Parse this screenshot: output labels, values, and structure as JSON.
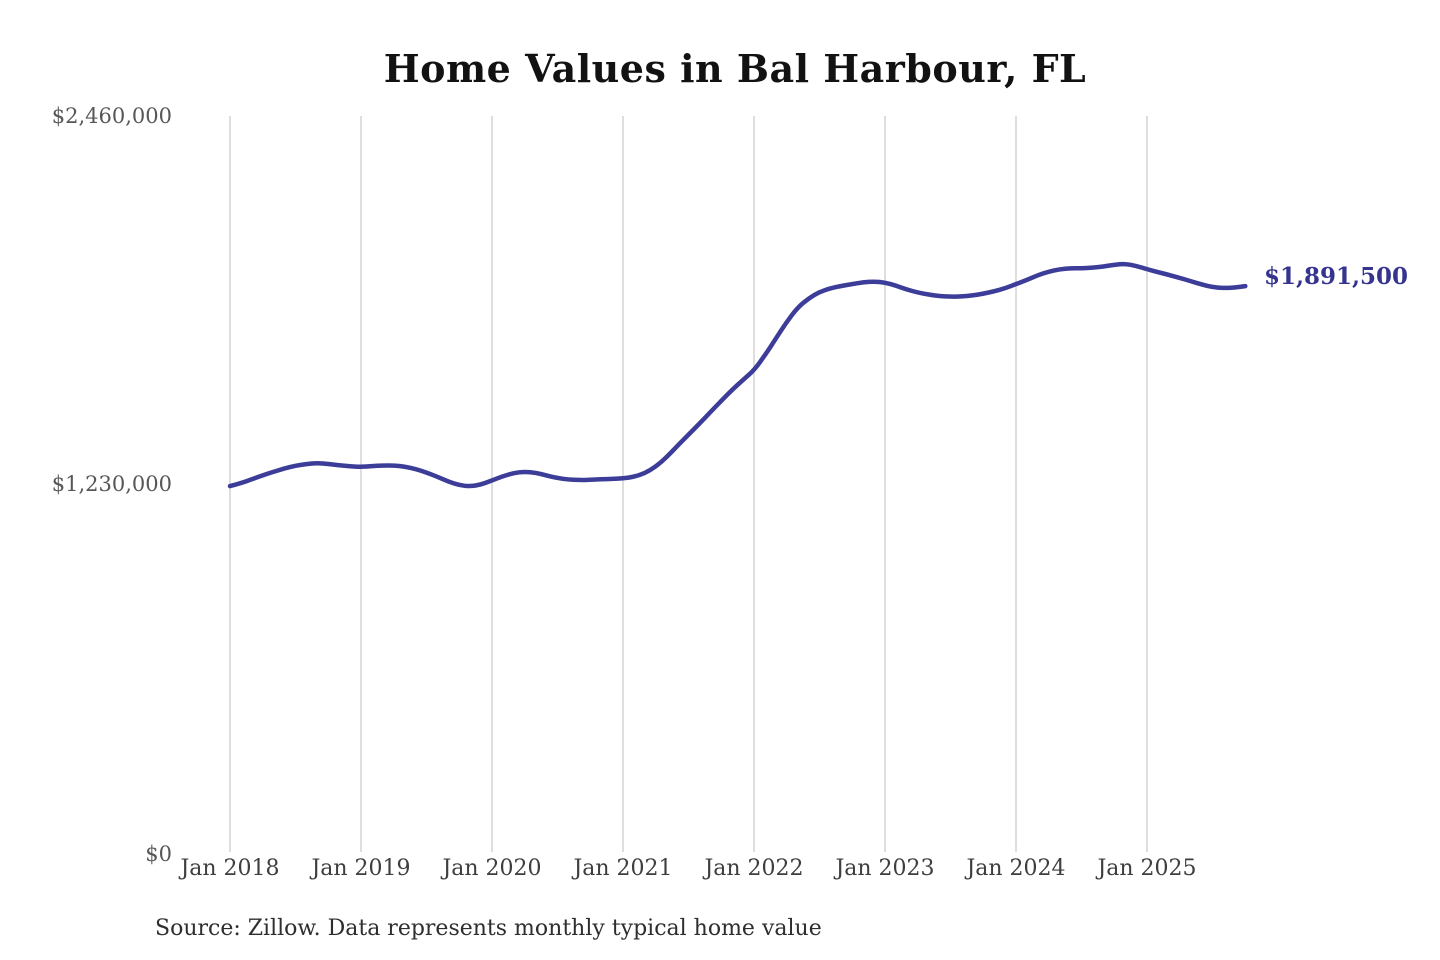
{
  "page": {
    "background": "#ffffff"
  },
  "header": {
    "title": "Home Values in Bal Harbour, FL"
  },
  "chart_data": {
    "type": "line",
    "title": "Home Values in Bal Harbour, FL",
    "series_name": "Typical home value",
    "grid": "vertical-only",
    "legend": "none",
    "ylim": [
      0,
      2460000
    ],
    "line_color": "#3c3c99",
    "grid_color": "#cccccc",
    "y_ticks": [
      {
        "value": 2460000,
        "label": "$2,460,000"
      },
      {
        "value": 1230000,
        "label": "$1,230,000"
      },
      {
        "value": 0,
        "label": "$0"
      }
    ],
    "x_ticks": [
      "Jan 2018",
      "Jan 2019",
      "Jan 2020",
      "Jan 2021",
      "Jan 2022",
      "Jan 2023",
      "Jan 2024",
      "Jan 2025"
    ],
    "end_label": "$1,891,500",
    "end_value": 1891500,
    "months": [
      "2018-01",
      "2018-02",
      "2018-03",
      "2018-04",
      "2018-05",
      "2018-06",
      "2018-07",
      "2018-08",
      "2018-09",
      "2018-10",
      "2018-11",
      "2018-12",
      "2019-01",
      "2019-02",
      "2019-03",
      "2019-04",
      "2019-05",
      "2019-06",
      "2019-07",
      "2019-08",
      "2019-09",
      "2019-10",
      "2019-11",
      "2019-12",
      "2020-01",
      "2020-02",
      "2020-03",
      "2020-04",
      "2020-05",
      "2020-06",
      "2020-07",
      "2020-08",
      "2020-09",
      "2020-10",
      "2020-11",
      "2020-12",
      "2021-01",
      "2021-02",
      "2021-03",
      "2021-04",
      "2021-05",
      "2021-06",
      "2021-07",
      "2021-08",
      "2021-09",
      "2021-10",
      "2021-11",
      "2021-12",
      "2022-01",
      "2022-02",
      "2022-03",
      "2022-04",
      "2022-05",
      "2022-06",
      "2022-07",
      "2022-08",
      "2022-09",
      "2022-10",
      "2022-11",
      "2022-12",
      "2023-01",
      "2023-02",
      "2023-03",
      "2023-04",
      "2023-05",
      "2023-06",
      "2023-07",
      "2023-08",
      "2023-09",
      "2023-10",
      "2023-11",
      "2023-12",
      "2024-01",
      "2024-02",
      "2024-03",
      "2024-04",
      "2024-05",
      "2024-06",
      "2024-07",
      "2024-08",
      "2024-09",
      "2024-10",
      "2024-11",
      "2024-12",
      "2025-01",
      "2025-02",
      "2025-03",
      "2025-04",
      "2025-05",
      "2025-06",
      "2025-07",
      "2025-08",
      "2025-09",
      "2025-10"
    ],
    "values": [
      1223000,
      1233000,
      1246000,
      1259000,
      1271000,
      1282000,
      1291000,
      1297000,
      1300000,
      1297000,
      1293000,
      1289000,
      1287000,
      1290000,
      1292000,
      1292000,
      1288000,
      1280000,
      1268000,
      1254000,
      1238000,
      1226000,
      1222000,
      1228000,
      1242000,
      1256000,
      1267000,
      1271000,
      1268000,
      1258000,
      1250000,
      1245000,
      1243000,
      1244000,
      1246000,
      1247000,
      1249000,
      1254000,
      1266000,
      1288000,
      1320000,
      1358000,
      1395000,
      1432000,
      1470000,
      1508000,
      1545000,
      1578000,
      1610000,
      1660000,
      1716000,
      1772000,
      1820000,
      1850000,
      1872000,
      1884000,
      1892000,
      1898000,
      1904000,
      1907000,
      1903000,
      1893000,
      1880000,
      1870000,
      1863000,
      1858000,
      1856000,
      1857000,
      1860000,
      1866000,
      1874000,
      1884000,
      1898000,
      1912000,
      1928000,
      1940000,
      1948000,
      1951000,
      1951000,
      1953000,
      1957000,
      1963000,
      1966000,
      1959000,
      1948000,
      1938000,
      1929000,
      1919000,
      1908000,
      1897000,
      1888000,
      1885000,
      1886000,
      1891500
    ]
  },
  "footer": {
    "source": "Source: Zillow. Data represents monthly typical home value"
  }
}
